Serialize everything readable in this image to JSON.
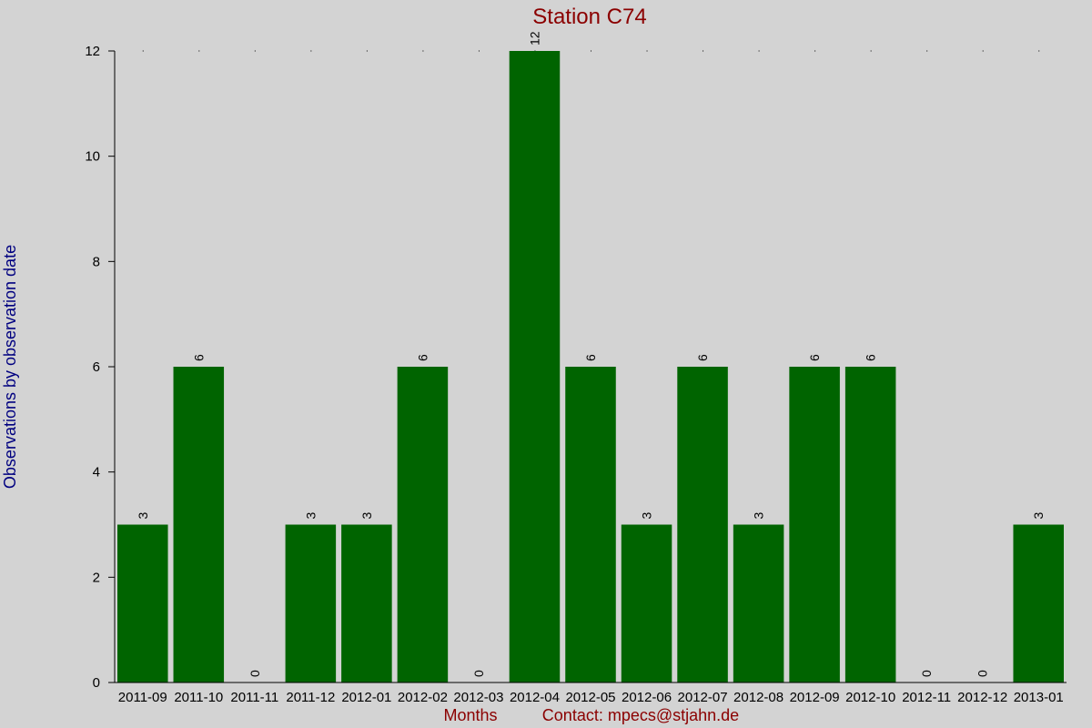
{
  "chart_data": {
    "type": "bar",
    "title": "Station C74",
    "xlabel": "Months",
    "ylabel": "Observations by observation date",
    "contact": "Contact: mpecs@stjahn.de",
    "ylim": [
      0,
      12
    ],
    "yticks": [
      0,
      2,
      4,
      6,
      8,
      10,
      12
    ],
    "categories": [
      "2011-09",
      "2011-10",
      "2011-11",
      "2011-12",
      "2012-01",
      "2012-02",
      "2012-03",
      "2012-04",
      "2012-05",
      "2012-06",
      "2012-07",
      "2012-08",
      "2012-09",
      "2012-10",
      "2012-11",
      "2012-12",
      "2013-01"
    ],
    "values": [
      3,
      6,
      0,
      3,
      3,
      6,
      0,
      12,
      6,
      3,
      6,
      3,
      6,
      6,
      0,
      0,
      3
    ],
    "bar_color": "#006400",
    "grid": true
  }
}
